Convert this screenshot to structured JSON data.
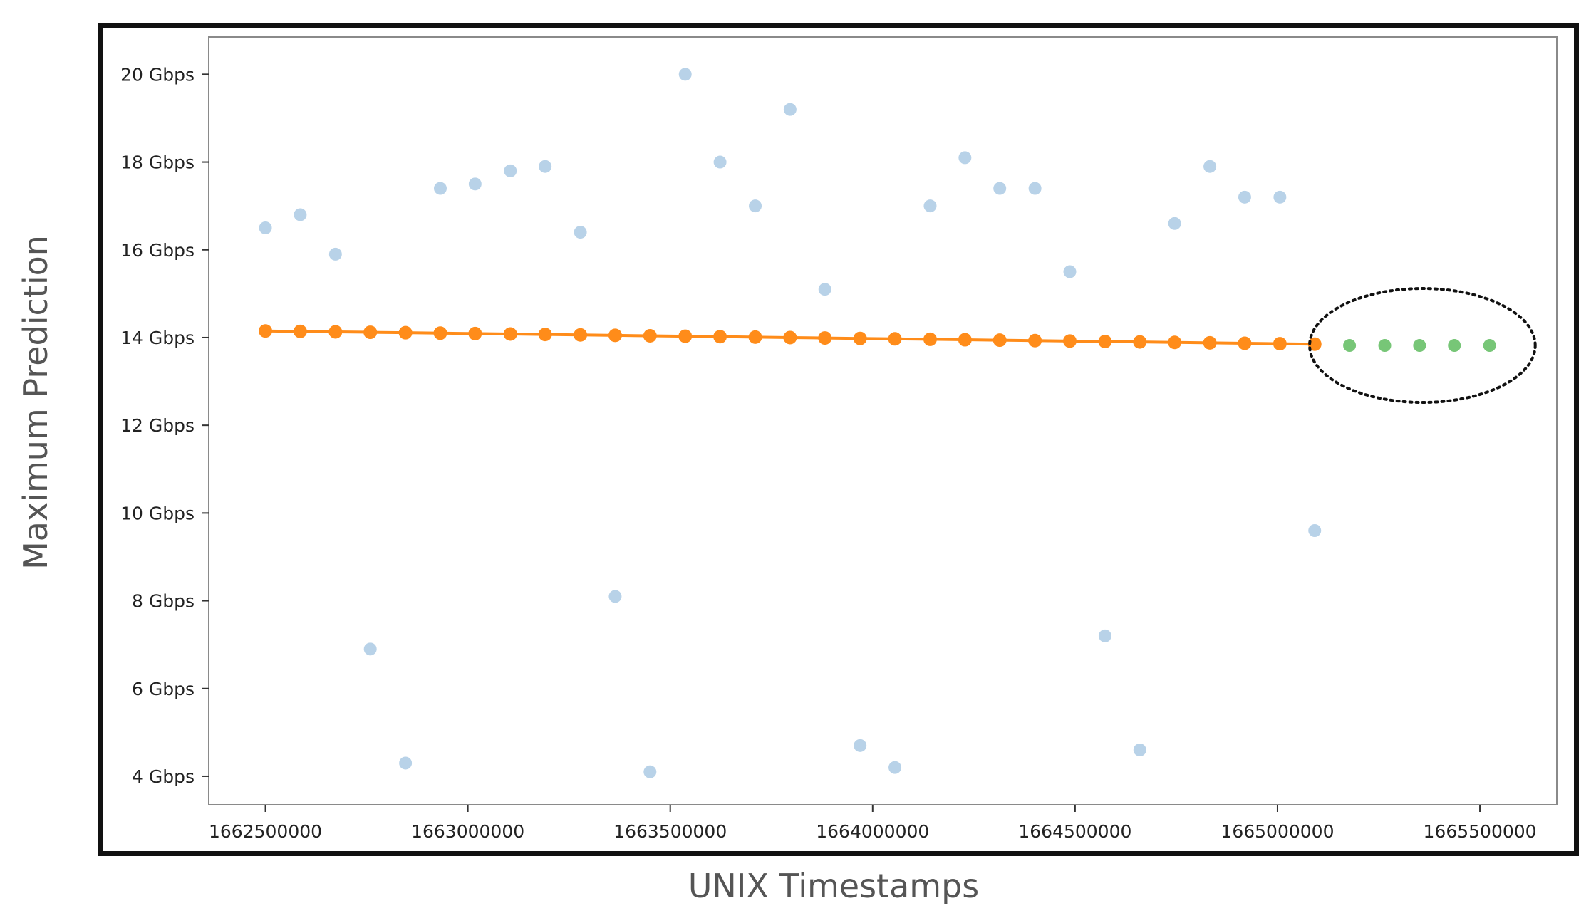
{
  "chart_data": {
    "type": "scatter",
    "title": "",
    "xlabel": "UNIX Timestamps",
    "ylabel": "Maximum Prediction",
    "xlim": [
      1662360000,
      1665690000
    ],
    "ylim": [
      3.35,
      20.85
    ],
    "grid": false,
    "x_ticks": [
      1662500000,
      1663000000,
      1663500000,
      1664000000,
      1664500000,
      1665000000,
      1665500000
    ],
    "x_tick_labels": [
      "1662500000",
      "1663000000",
      "1663500000",
      "1664000000",
      "1664500000",
      "1665000000",
      "1665500000"
    ],
    "y_ticks": [
      4,
      6,
      8,
      10,
      12,
      14,
      16,
      18,
      20
    ],
    "y_tick_labels": [
      "4 Gbps",
      "6 Gbps",
      "8 Gbps",
      "10 Gbps",
      "12 Gbps",
      "14 Gbps",
      "16 Gbps",
      "18 Gbps",
      "20 Gbps"
    ],
    "series": [
      {
        "style": "scatter",
        "color": "#b8d2e8",
        "x": [
          1662500000,
          1662586000,
          1662673000,
          1662759000,
          1662846000,
          1662932000,
          1663018000,
          1663105000,
          1663191000,
          1663278000,
          1663364000,
          1663450000,
          1663537000,
          1663623000,
          1663710000,
          1663796000,
          1663882000,
          1663969000,
          1664055000,
          1664142000,
          1664228000,
          1664314000,
          1664401000,
          1664487000,
          1664574000,
          1664660000,
          1664746000,
          1664833000,
          1664919000,
          1665006000,
          1665092000
        ],
        "y": [
          16.5,
          16.8,
          15.9,
          6.9,
          4.3,
          17.4,
          17.5,
          17.8,
          17.9,
          16.4,
          8.1,
          4.1,
          20.0,
          18.0,
          17.0,
          19.2,
          15.1,
          4.7,
          4.2,
          17.0,
          18.1,
          17.4,
          17.4,
          15.5,
          7.2,
          4.6,
          16.6,
          17.9,
          17.2,
          17.2,
          9.6
        ]
      },
      {
        "style": "line-markers",
        "color": "#ff8c1a",
        "x": [
          1662500000,
          1662586000,
          1662673000,
          1662759000,
          1662846000,
          1662932000,
          1663018000,
          1663105000,
          1663191000,
          1663278000,
          1663364000,
          1663450000,
          1663537000,
          1663623000,
          1663710000,
          1663796000,
          1663882000,
          1663969000,
          1664055000,
          1664142000,
          1664228000,
          1664314000,
          1664401000,
          1664487000,
          1664574000,
          1664660000,
          1664746000,
          1664833000,
          1664919000,
          1665006000,
          1665092000
        ],
        "y": [
          14.15,
          14.14,
          14.13,
          14.12,
          14.11,
          14.1,
          14.09,
          14.08,
          14.07,
          14.06,
          14.05,
          14.04,
          14.03,
          14.02,
          14.01,
          14.0,
          13.99,
          13.98,
          13.97,
          13.96,
          13.95,
          13.94,
          13.93,
          13.92,
          13.91,
          13.9,
          13.89,
          13.88,
          13.87,
          13.86,
          13.85
        ]
      },
      {
        "style": "scatter",
        "color": "#77c677",
        "x": [
          1665178000,
          1665265000,
          1665351000,
          1665437000,
          1665524000
        ],
        "y": [
          13.82,
          13.82,
          13.82,
          13.82,
          13.82
        ]
      }
    ],
    "annotations": [
      {
        "type": "dotted-ellipse",
        "target": "series-3",
        "color": "#111111"
      }
    ]
  }
}
